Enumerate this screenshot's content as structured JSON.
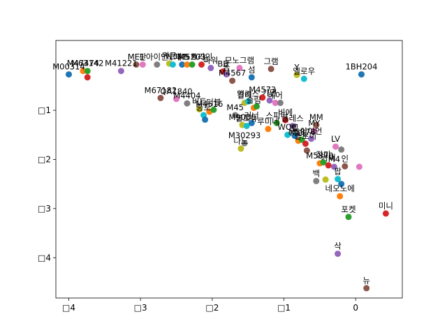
{
  "chart_data": {
    "type": "scatter",
    "title": "",
    "xlabel": "",
    "ylabel": "",
    "xlim": [
      -4.18,
      0.65
    ],
    "ylim": [
      -4.82,
      0.42
    ],
    "grid": false,
    "x_ticks": [
      {
        "value": -4,
        "label": "□4"
      },
      {
        "value": -3,
        "label": "□3"
      },
      {
        "value": -2,
        "label": "□2"
      },
      {
        "value": -1,
        "label": "□1"
      },
      {
        "value": 0,
        "label": "0"
      }
    ],
    "y_ticks": [
      {
        "value": -1,
        "label": "□1"
      },
      {
        "value": -2,
        "label": "□2"
      },
      {
        "value": -3,
        "label": "□3"
      },
      {
        "value": -4,
        "label": "□4"
      }
    ],
    "palette": [
      "#1f77b4",
      "#ff7f0e",
      "#2ca02c",
      "#d62728",
      "#9467bd",
      "#8c564b",
      "#e377c2",
      "#7f7f7f",
      "#bcbd22",
      "#17becf"
    ],
    "points": [
      {
        "x": -4.0,
        "y": -0.27,
        "label": "M00314"
      },
      {
        "x": -3.8,
        "y": -0.2,
        "label": "M47474"
      },
      {
        "x": -3.74,
        "y": -0.2,
        "label": "M63142"
      },
      {
        "x": -3.74,
        "y": -0.33,
        "label": ""
      },
      {
        "x": -3.27,
        "y": -0.2,
        "label": "M41221"
      },
      {
        "x": -3.06,
        "y": -0.07,
        "label": "ME1"
      },
      {
        "x": -2.97,
        "y": -0.07,
        "label": "판"
      },
      {
        "x": -2.77,
        "y": -0.07,
        "label": "아이언"
      },
      {
        "x": -2.6,
        "y": -0.05,
        "label": "퀴큰"
      },
      {
        "x": -2.55,
        "y": -0.07,
        "label": "케이"
      },
      {
        "x": -2.42,
        "y": -0.07,
        "label": "피프"
      },
      {
        "x": -2.35,
        "y": -0.07,
        "label": "M5 9"
      },
      {
        "x": -2.28,
        "y": -0.07,
        "label": "M5203"
      },
      {
        "x": -2.15,
        "y": -0.07,
        "label": "트라인"
      },
      {
        "x": -2.02,
        "y": -0.14,
        "label": "파워"
      },
      {
        "x": -2.72,
        "y": -0.75,
        "label": "M67182"
      },
      {
        "x": -2.5,
        "y": -0.77,
        "label": "QA1840"
      },
      {
        "x": -2.35,
        "y": -0.86,
        "label": "M4404"
      },
      {
        "x": -2.18,
        "y": -0.98,
        "label": "비트"
      },
      {
        "x": -2.12,
        "y": -1.1,
        "label": "종로"
      },
      {
        "x": -2.1,
        "y": -1.19,
        "label": ""
      },
      {
        "x": -2.04,
        "y": -1.03,
        "label": "M4516"
      },
      {
        "x": -1.98,
        "y": -0.99,
        "label": "더블"
      },
      {
        "x": -1.85,
        "y": -0.21,
        "label": "BB"
      },
      {
        "x": -1.8,
        "y": -0.27,
        "label": "동"
      },
      {
        "x": -1.72,
        "y": -0.4,
        "label": "M4567"
      },
      {
        "x": -1.62,
        "y": -0.14,
        "label": "모노그램"
      },
      {
        "x": -1.68,
        "y": -1.1,
        "label": "M45"
      },
      {
        "x": -1.55,
        "y": -0.85,
        "label": "칼레"
      },
      {
        "x": -1.5,
        "y": -0.82,
        "label": "앨리스"
      },
      {
        "x": -1.45,
        "y": -0.33,
        "label": "섬"
      },
      {
        "x": -1.42,
        "y": -0.95,
        "label": "슬림"
      },
      {
        "x": -1.38,
        "y": -0.92,
        "label": ""
      },
      {
        "x": -1.3,
        "y": -0.74,
        "label": "M4573"
      },
      {
        "x": -1.2,
        "y": -0.8,
        "label": "가면"
      },
      {
        "x": -1.18,
        "y": -0.16,
        "label": "그램"
      },
      {
        "x": -1.12,
        "y": -0.85,
        "label": "베어"
      },
      {
        "x": -1.05,
        "y": -0.85,
        "label": ""
      },
      {
        "x": -1.58,
        "y": -1.3,
        "label": "M9000"
      },
      {
        "x": -1.52,
        "y": -1.32,
        "label": "불로뉴"
      },
      {
        "x": -1.45,
        "y": -1.26,
        "label": "러너"
      },
      {
        "x": -1.22,
        "y": -1.38,
        "label": "루미네"
      },
      {
        "x": -1.1,
        "y": -1.26,
        "label": "스피디"
      },
      {
        "x": -0.98,
        "y": -1.2,
        "label": "비에"
      },
      {
        "x": -0.88,
        "y": -1.32,
        "label": "플레스"
      },
      {
        "x": -0.55,
        "y": -1.3,
        "label": "MM"
      },
      {
        "x": -0.58,
        "y": -1.42,
        "label": "MY"
      },
      {
        "x": -1.55,
        "y": -1.67,
        "label": "M30293"
      },
      {
        "x": -1.6,
        "y": -1.78,
        "label": "나노"
      },
      {
        "x": -0.95,
        "y": -1.5,
        "label": "WOC"
      },
      {
        "x": -0.85,
        "y": -1.52,
        "label": "벨"
      },
      {
        "x": -0.8,
        "y": -1.62,
        "label": "MCL"
      },
      {
        "x": -0.75,
        "y": -1.6,
        "label": "M5878"
      },
      {
        "x": -0.7,
        "y": -1.68,
        "label": "플로이"
      },
      {
        "x": -0.62,
        "y": -1.58,
        "label": "아이언"
      },
      {
        "x": -0.68,
        "y": -1.82,
        "label": ""
      },
      {
        "x": -0.28,
        "y": -1.74,
        "label": "LV"
      },
      {
        "x": -0.2,
        "y": -1.8,
        "label": ""
      },
      {
        "x": -0.82,
        "y": -0.28,
        "label": "Y"
      },
      {
        "x": -0.72,
        "y": -0.36,
        "label": "엘로우"
      },
      {
        "x": 0.08,
        "y": -0.27,
        "label": "1BH204"
      },
      {
        "x": -0.5,
        "y": -2.08,
        "label": "M5870"
      },
      {
        "x": -0.45,
        "y": -2.06,
        "label": "장미"
      },
      {
        "x": -0.38,
        "y": -2.12,
        "label": "카피"
      },
      {
        "x": -0.3,
        "y": -2.15,
        "label": "M4"
      },
      {
        "x": -0.15,
        "y": -2.14,
        "label": "인"
      },
      {
        "x": 0.05,
        "y": -2.15,
        "label": ""
      },
      {
        "x": -0.55,
        "y": -2.44,
        "label": "백"
      },
      {
        "x": -0.42,
        "y": -2.41,
        "label": ""
      },
      {
        "x": -0.25,
        "y": -2.4,
        "label": "팝"
      },
      {
        "x": -0.2,
        "y": -2.5,
        "label": ""
      },
      {
        "x": -0.22,
        "y": -2.75,
        "label": "네오노에"
      },
      {
        "x": -0.1,
        "y": -3.17,
        "label": "포켓"
      },
      {
        "x": 0.42,
        "y": -3.1,
        "label": "미니"
      },
      {
        "x": -0.25,
        "y": -3.92,
        "label": "삭"
      },
      {
        "x": 0.15,
        "y": -4.62,
        "label": "뉴"
      }
    ]
  }
}
